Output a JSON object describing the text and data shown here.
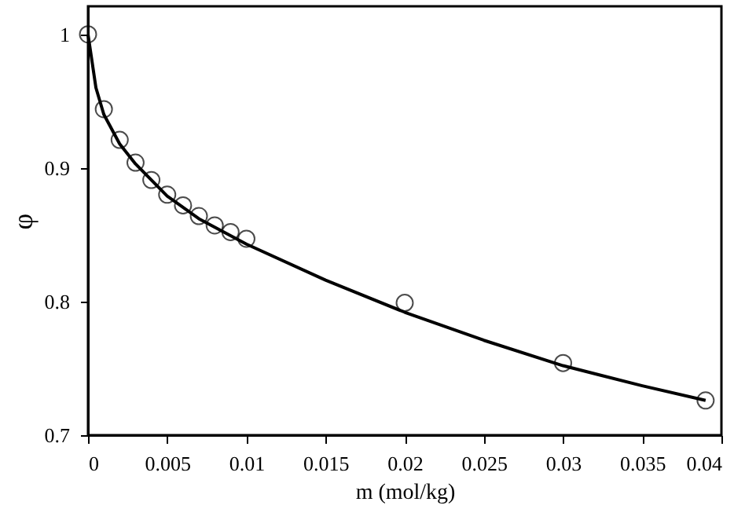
{
  "chart_data": {
    "type": "scatter",
    "xlabel": "m (mol/kg)",
    "ylabel": "φ",
    "xlim": [
      0,
      0.04
    ],
    "ylim": [
      0.7,
      1.021
    ],
    "xticks": [
      0,
      0.005,
      0.01,
      0.015,
      0.02,
      0.025,
      0.03,
      0.035,
      0.04
    ],
    "yticks": [
      0.7,
      0.8,
      0.9,
      1
    ],
    "series": [
      {
        "color": "#000000",
        "marker": "circle",
        "x": [
          0,
          0.001,
          0.002,
          0.003,
          0.004,
          0.005,
          0.006,
          0.007,
          0.008,
          0.009,
          0.01,
          0.02,
          0.03,
          0.039
        ],
        "values": [
          1.0,
          0.944,
          0.921,
          0.904,
          0.891,
          0.88,
          0.872,
          0.864,
          0.857,
          0.852,
          0.847,
          0.799,
          0.754,
          0.726
        ]
      },
      {
        "type": "line",
        "color": "#000000",
        "marker": "none",
        "x": [
          0,
          0.0005,
          0.001,
          0.002,
          0.003,
          0.005,
          0.007,
          0.01,
          0.015,
          0.02,
          0.025,
          0.03,
          0.035,
          0.039
        ],
        "values": [
          1.0,
          0.96,
          0.94,
          0.918,
          0.903,
          0.879,
          0.862,
          0.843,
          0.816,
          0.792,
          0.771,
          0.752,
          0.737,
          0.726
        ]
      }
    ],
    "grid": false
  }
}
